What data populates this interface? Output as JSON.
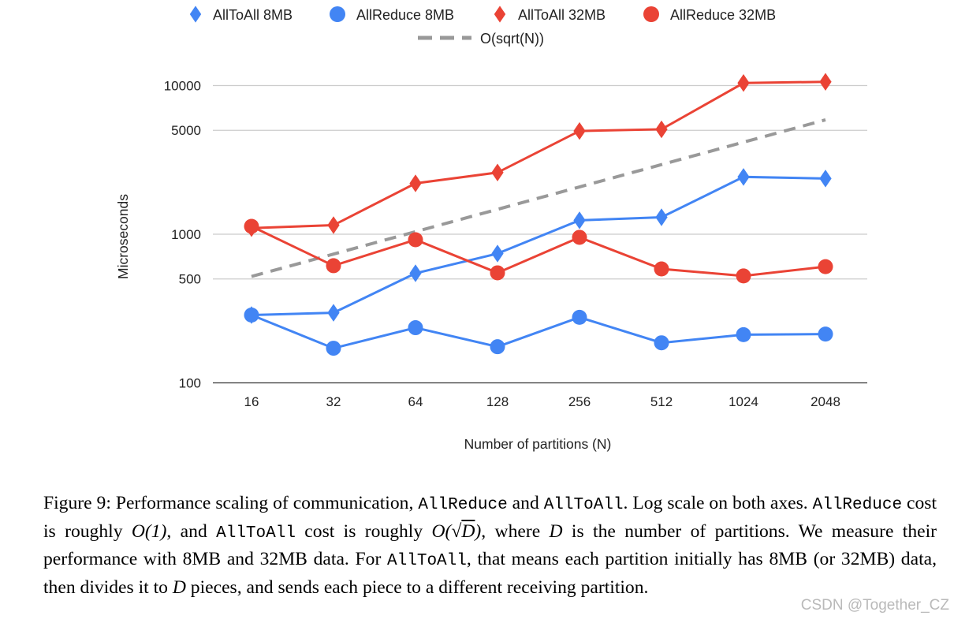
{
  "chart_data": {
    "type": "line",
    "title": "",
    "xlabel": "Number of partitions (N)",
    "ylabel": "Microseconds",
    "x_scale": "log2",
    "y_scale": "log",
    "ylim": [
      100,
      12000
    ],
    "yticks": [
      100,
      500,
      1000,
      5000,
      10000
    ],
    "categories": [
      "16",
      "32",
      "64",
      "128",
      "256",
      "512",
      "1024",
      "2048"
    ],
    "grid": true,
    "legend_position": "top",
    "series": [
      {
        "name": "AllToAll 8MB",
        "marker": "diamond",
        "color": "#4285f4",
        "dashed": false,
        "values": [
          286,
          296,
          546,
          741,
          1240,
          1300,
          2430,
          2370
        ]
      },
      {
        "name": "AllReduce 8MB",
        "marker": "circle",
        "color": "#4285f4",
        "dashed": false,
        "values": [
          286,
          171,
          235,
          175,
          276,
          186,
          211,
          213
        ]
      },
      {
        "name": "AllToAll 32MB",
        "marker": "diamond",
        "color": "#ea4335",
        "dashed": false,
        "values": [
          1100,
          1150,
          2200,
          2600,
          4950,
          5080,
          10400,
          10600
        ]
      },
      {
        "name": "AllReduce 32MB",
        "marker": "circle",
        "color": "#ea4335",
        "dashed": false,
        "values": [
          1130,
          614,
          918,
          550,
          953,
          584,
          524,
          605
        ]
      },
      {
        "name": "O(sqrt(N))",
        "marker": "none",
        "color": "#999999",
        "dashed": true,
        "values": [
          520,
          735,
          1040,
          1470,
          2080,
          2940,
          4160,
          5880
        ]
      }
    ]
  },
  "caption": [
    {
      "t": "text",
      "v": "Figure 9: Performance scaling of communication, "
    },
    {
      "t": "code",
      "v": "AllReduce"
    },
    {
      "t": "text",
      "v": " and "
    },
    {
      "t": "code",
      "v": "AllToAll"
    },
    {
      "t": "text",
      "v": ". Log scale on both axes. "
    },
    {
      "t": "code",
      "v": "AllReduce"
    },
    {
      "t": "text",
      "v": " cost is roughly "
    },
    {
      "t": "math",
      "v": "O(1)"
    },
    {
      "t": "text",
      "v": ", and "
    },
    {
      "t": "code",
      "v": "AllToAll"
    },
    {
      "t": "text",
      "v": " cost is roughly "
    },
    {
      "t": "math",
      "v": "O(√"
    },
    {
      "t": "sq",
      "v": "D"
    },
    {
      "t": "math",
      "v": ")"
    },
    {
      "t": "text",
      "v": ", where "
    },
    {
      "t": "math",
      "v": "D"
    },
    {
      "t": "text",
      "v": " is the number of partitions. We measure their performance with 8MB and 32MB data. For "
    },
    {
      "t": "code",
      "v": "AllToAll"
    },
    {
      "t": "text",
      "v": ", that means each partition initially has 8MB (or 32MB) data, then divides it to "
    },
    {
      "t": "math",
      "v": "D"
    },
    {
      "t": "text",
      "v": " pieces, and sends each piece to a different receiving partition."
    }
  ],
  "watermark": "CSDN @Together_CZ"
}
